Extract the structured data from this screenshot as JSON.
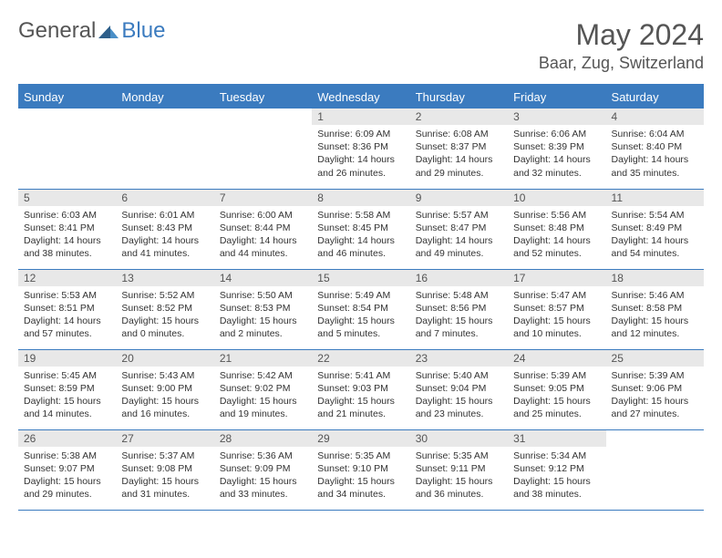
{
  "logo": {
    "general": "General",
    "blue": "Blue"
  },
  "title": "May 2024",
  "location": "Baar, Zug, Switzerland",
  "colors": {
    "accent": "#3b7bbf",
    "header_text": "#ffffff",
    "daynum_bg": "#e8e8e8",
    "text": "#333333",
    "muted_text": "#555555",
    "background": "#ffffff"
  },
  "weekdays": [
    "Sunday",
    "Monday",
    "Tuesday",
    "Wednesday",
    "Thursday",
    "Friday",
    "Saturday"
  ],
  "weeks": [
    [
      {
        "empty": true
      },
      {
        "empty": true
      },
      {
        "empty": true
      },
      {
        "day": "1",
        "sunrise": "Sunrise: 6:09 AM",
        "sunset": "Sunset: 8:36 PM",
        "daylight": "Daylight: 14 hours and 26 minutes."
      },
      {
        "day": "2",
        "sunrise": "Sunrise: 6:08 AM",
        "sunset": "Sunset: 8:37 PM",
        "daylight": "Daylight: 14 hours and 29 minutes."
      },
      {
        "day": "3",
        "sunrise": "Sunrise: 6:06 AM",
        "sunset": "Sunset: 8:39 PM",
        "daylight": "Daylight: 14 hours and 32 minutes."
      },
      {
        "day": "4",
        "sunrise": "Sunrise: 6:04 AM",
        "sunset": "Sunset: 8:40 PM",
        "daylight": "Daylight: 14 hours and 35 minutes."
      }
    ],
    [
      {
        "day": "5",
        "sunrise": "Sunrise: 6:03 AM",
        "sunset": "Sunset: 8:41 PM",
        "daylight": "Daylight: 14 hours and 38 minutes."
      },
      {
        "day": "6",
        "sunrise": "Sunrise: 6:01 AM",
        "sunset": "Sunset: 8:43 PM",
        "daylight": "Daylight: 14 hours and 41 minutes."
      },
      {
        "day": "7",
        "sunrise": "Sunrise: 6:00 AM",
        "sunset": "Sunset: 8:44 PM",
        "daylight": "Daylight: 14 hours and 44 minutes."
      },
      {
        "day": "8",
        "sunrise": "Sunrise: 5:58 AM",
        "sunset": "Sunset: 8:45 PM",
        "daylight": "Daylight: 14 hours and 46 minutes."
      },
      {
        "day": "9",
        "sunrise": "Sunrise: 5:57 AM",
        "sunset": "Sunset: 8:47 PM",
        "daylight": "Daylight: 14 hours and 49 minutes."
      },
      {
        "day": "10",
        "sunrise": "Sunrise: 5:56 AM",
        "sunset": "Sunset: 8:48 PM",
        "daylight": "Daylight: 14 hours and 52 minutes."
      },
      {
        "day": "11",
        "sunrise": "Sunrise: 5:54 AM",
        "sunset": "Sunset: 8:49 PM",
        "daylight": "Daylight: 14 hours and 54 minutes."
      }
    ],
    [
      {
        "day": "12",
        "sunrise": "Sunrise: 5:53 AM",
        "sunset": "Sunset: 8:51 PM",
        "daylight": "Daylight: 14 hours and 57 minutes."
      },
      {
        "day": "13",
        "sunrise": "Sunrise: 5:52 AM",
        "sunset": "Sunset: 8:52 PM",
        "daylight": "Daylight: 15 hours and 0 minutes."
      },
      {
        "day": "14",
        "sunrise": "Sunrise: 5:50 AM",
        "sunset": "Sunset: 8:53 PM",
        "daylight": "Daylight: 15 hours and 2 minutes."
      },
      {
        "day": "15",
        "sunrise": "Sunrise: 5:49 AM",
        "sunset": "Sunset: 8:54 PM",
        "daylight": "Daylight: 15 hours and 5 minutes."
      },
      {
        "day": "16",
        "sunrise": "Sunrise: 5:48 AM",
        "sunset": "Sunset: 8:56 PM",
        "daylight": "Daylight: 15 hours and 7 minutes."
      },
      {
        "day": "17",
        "sunrise": "Sunrise: 5:47 AM",
        "sunset": "Sunset: 8:57 PM",
        "daylight": "Daylight: 15 hours and 10 minutes."
      },
      {
        "day": "18",
        "sunrise": "Sunrise: 5:46 AM",
        "sunset": "Sunset: 8:58 PM",
        "daylight": "Daylight: 15 hours and 12 minutes."
      }
    ],
    [
      {
        "day": "19",
        "sunrise": "Sunrise: 5:45 AM",
        "sunset": "Sunset: 8:59 PM",
        "daylight": "Daylight: 15 hours and 14 minutes."
      },
      {
        "day": "20",
        "sunrise": "Sunrise: 5:43 AM",
        "sunset": "Sunset: 9:00 PM",
        "daylight": "Daylight: 15 hours and 16 minutes."
      },
      {
        "day": "21",
        "sunrise": "Sunrise: 5:42 AM",
        "sunset": "Sunset: 9:02 PM",
        "daylight": "Daylight: 15 hours and 19 minutes."
      },
      {
        "day": "22",
        "sunrise": "Sunrise: 5:41 AM",
        "sunset": "Sunset: 9:03 PM",
        "daylight": "Daylight: 15 hours and 21 minutes."
      },
      {
        "day": "23",
        "sunrise": "Sunrise: 5:40 AM",
        "sunset": "Sunset: 9:04 PM",
        "daylight": "Daylight: 15 hours and 23 minutes."
      },
      {
        "day": "24",
        "sunrise": "Sunrise: 5:39 AM",
        "sunset": "Sunset: 9:05 PM",
        "daylight": "Daylight: 15 hours and 25 minutes."
      },
      {
        "day": "25",
        "sunrise": "Sunrise: 5:39 AM",
        "sunset": "Sunset: 9:06 PM",
        "daylight": "Daylight: 15 hours and 27 minutes."
      }
    ],
    [
      {
        "day": "26",
        "sunrise": "Sunrise: 5:38 AM",
        "sunset": "Sunset: 9:07 PM",
        "daylight": "Daylight: 15 hours and 29 minutes."
      },
      {
        "day": "27",
        "sunrise": "Sunrise: 5:37 AM",
        "sunset": "Sunset: 9:08 PM",
        "daylight": "Daylight: 15 hours and 31 minutes."
      },
      {
        "day": "28",
        "sunrise": "Sunrise: 5:36 AM",
        "sunset": "Sunset: 9:09 PM",
        "daylight": "Daylight: 15 hours and 33 minutes."
      },
      {
        "day": "29",
        "sunrise": "Sunrise: 5:35 AM",
        "sunset": "Sunset: 9:10 PM",
        "daylight": "Daylight: 15 hours and 34 minutes."
      },
      {
        "day": "30",
        "sunrise": "Sunrise: 5:35 AM",
        "sunset": "Sunset: 9:11 PM",
        "daylight": "Daylight: 15 hours and 36 minutes."
      },
      {
        "day": "31",
        "sunrise": "Sunrise: 5:34 AM",
        "sunset": "Sunset: 9:12 PM",
        "daylight": "Daylight: 15 hours and 38 minutes."
      },
      {
        "empty": true
      }
    ]
  ]
}
